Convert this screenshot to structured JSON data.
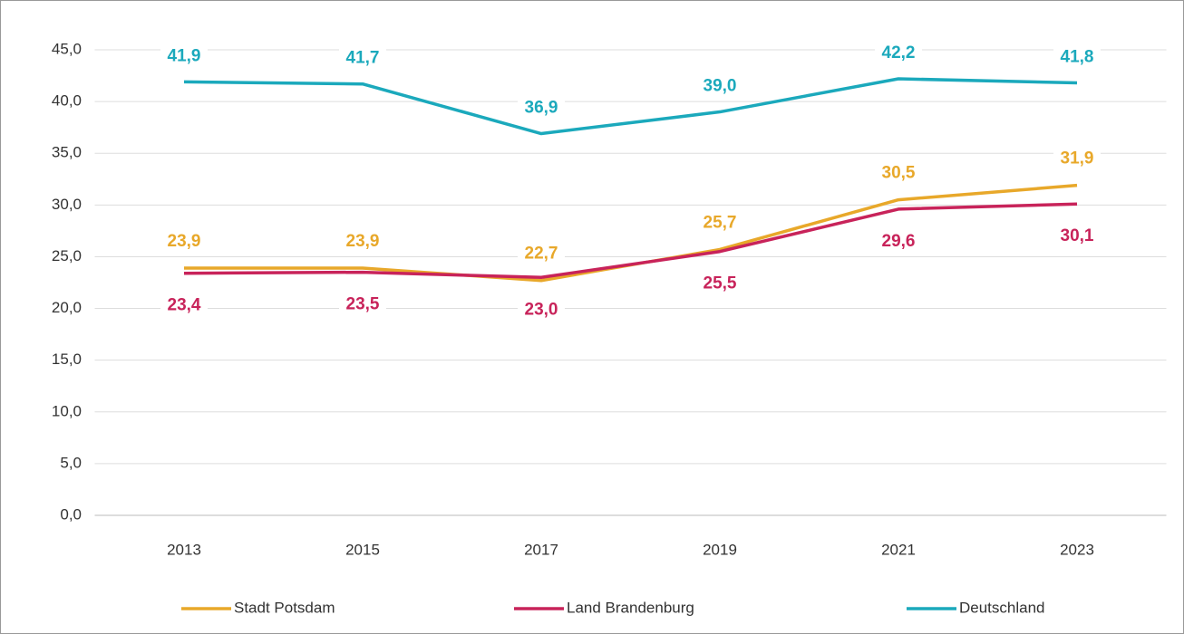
{
  "chart_data": {
    "type": "line",
    "categories": [
      "2013",
      "2015",
      "2017",
      "2019",
      "2021",
      "2023"
    ],
    "series": [
      {
        "name": "Stadt Potsdam",
        "color": "#e8a82a",
        "values": [
          23.9,
          23.9,
          22.7,
          25.7,
          30.5,
          31.9
        ],
        "value_labels": [
          "23,9",
          "23,9",
          "22,7",
          "25,7",
          "30,5",
          "31,9"
        ]
      },
      {
        "name": "Land Brandenburg",
        "color": "#c8235a",
        "values": [
          23.4,
          23.5,
          23.0,
          25.5,
          29.6,
          30.1
        ],
        "value_labels": [
          "23,4",
          "23,5",
          "23,0",
          "25,5",
          "29,6",
          "30,1"
        ]
      },
      {
        "name": "Deutschland",
        "color": "#1ba9bc",
        "values": [
          41.9,
          41.7,
          36.9,
          39.0,
          42.2,
          41.8
        ],
        "value_labels": [
          "41,9",
          "41,7",
          "36,9",
          "39,0",
          "42,2",
          "41,8"
        ]
      }
    ],
    "ylim": [
      0,
      45
    ],
    "yticks": [
      {
        "value": 0,
        "label": "0,0"
      },
      {
        "value": 5,
        "label": "5,0"
      },
      {
        "value": 10,
        "label": "10,0"
      },
      {
        "value": 15,
        "label": "15,0"
      },
      {
        "value": 20,
        "label": "20,0"
      },
      {
        "value": 25,
        "label": "25,0"
      },
      {
        "value": 30,
        "label": "30,0"
      },
      {
        "value": 35,
        "label": "35,0"
      },
      {
        "value": 40,
        "label": "40,0"
      },
      {
        "value": 45,
        "label": "45,0"
      }
    ],
    "grid": true,
    "legend": "bottom"
  }
}
